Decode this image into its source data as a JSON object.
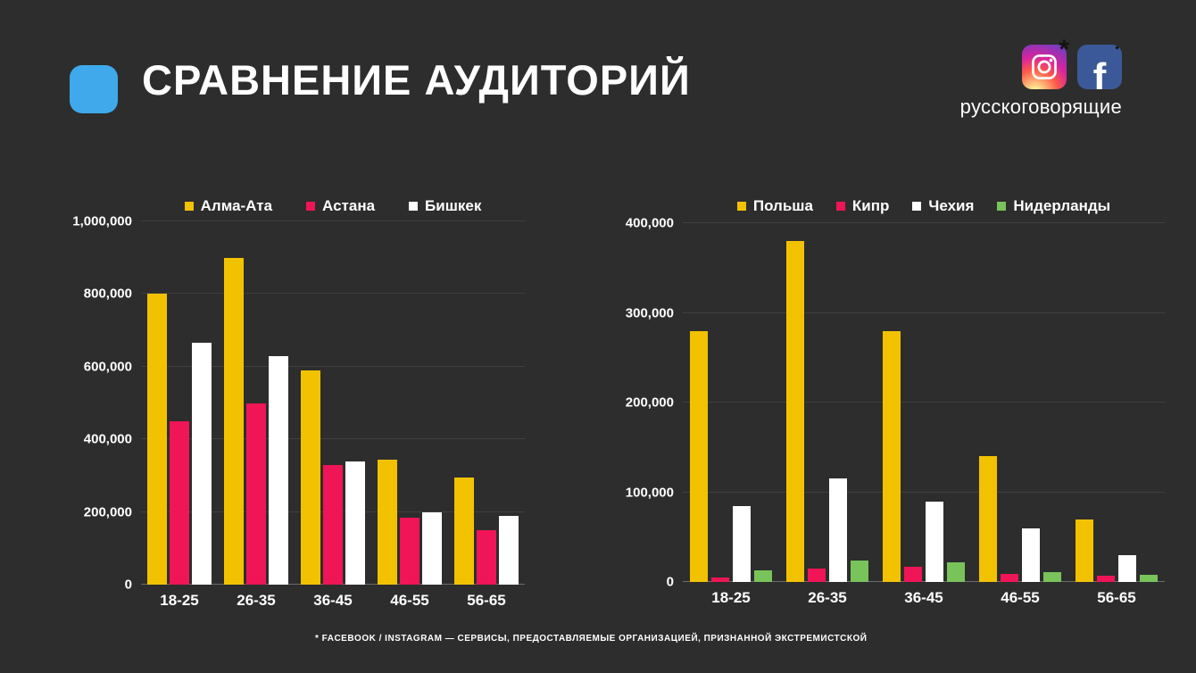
{
  "header": {
    "title": "СРАВНЕНИЕ АУДИТОРИЙ",
    "caption": "русскоговорящие",
    "facebook_letter": "f",
    "asterisk": "*",
    "accent_color": "#3fa9ec",
    "facebook_blue": "#3b5998",
    "icons": [
      "instagram-icon",
      "facebook-icon"
    ]
  },
  "footer": {
    "disclaimer": "* FACEBOOK / INSTAGRAM — СЕРВИСЫ, ПРЕДОСТАВЛЯЕМЫЕ ОРГАНИЗАЦИЕЙ, ПРИЗНАННОЙ ЭКСТРЕМИСТСКОЙ"
  },
  "colors": {
    "background": "#2d2d2d",
    "text": "#ffffff",
    "grid": "rgba(255,255,255,0.09)"
  },
  "chart_data": [
    {
      "type": "bar",
      "title": "",
      "categories": [
        "18-25",
        "26-35",
        "36-45",
        "46-55",
        "56-65"
      ],
      "series": [
        {
          "name": "Алма-Ата",
          "color": "#f2c200",
          "values": [
            800000,
            900000,
            590000,
            345000,
            295000
          ]
        },
        {
          "name": "Астана",
          "color": "#ef1556",
          "values": [
            450000,
            500000,
            330000,
            185000,
            150000
          ]
        },
        {
          "name": "Бишкек",
          "color": "#ffffff",
          "values": [
            665000,
            630000,
            340000,
            200000,
            190000
          ]
        }
      ],
      "ylim": [
        0,
        1000000
      ],
      "yticks": [
        0,
        200000,
        400000,
        600000,
        800000,
        1000000
      ],
      "grid": true,
      "legend_position": "top"
    },
    {
      "type": "bar",
      "title": "",
      "categories": [
        "18-25",
        "26-35",
        "36-45",
        "46-55",
        "56-65"
      ],
      "series": [
        {
          "name": "Польша",
          "color": "#f2c200",
          "values": [
            280000,
            380000,
            280000,
            140000,
            70000
          ]
        },
        {
          "name": "Кипр",
          "color": "#ef1556",
          "values": [
            5000,
            15000,
            17000,
            9000,
            7000
          ]
        },
        {
          "name": "Чехия",
          "color": "#ffffff",
          "values": [
            85000,
            115000,
            90000,
            60000,
            30000
          ]
        },
        {
          "name": "Нидерланды",
          "color": "#78c35a",
          "values": [
            13000,
            24000,
            22000,
            11000,
            8000
          ]
        }
      ],
      "ylim": [
        0,
        400000
      ],
      "yticks": [
        0,
        100000,
        200000,
        300000,
        400000
      ],
      "grid": true,
      "legend_position": "top"
    }
  ]
}
